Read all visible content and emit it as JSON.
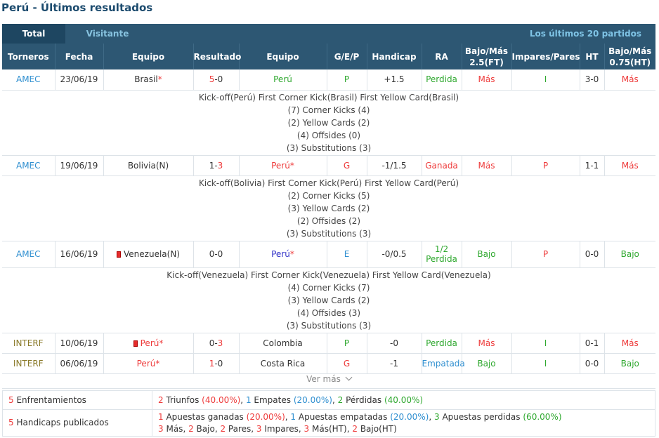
{
  "title": "Perú - Últimos resultados",
  "tabs": {
    "total": "Total",
    "visitante": "Visitante",
    "last20": "Los últimos 20 partidos"
  },
  "headers": [
    "Torneros",
    "Fecha",
    "Equipo",
    "Resultado",
    "Equipo",
    "G/E/P",
    "Handicap",
    "RA",
    "Bajo/Más 2.5(FT)",
    "Impares/Pares",
    "HT",
    "Bajo/Más 0.75(HT)"
  ],
  "header_lines": {
    "bm_ft_1": "Bajo/Más",
    "bm_ft_2": "2.5(FT)",
    "bm_ht_1": "Bajo/Más",
    "bm_ht_2": "0.75(HT)"
  },
  "matches": [
    {
      "tournament": "AMEC",
      "date": "23/06/19",
      "home": "Brasil",
      "home_star": "*",
      "home_flag": false,
      "score_home": "5",
      "score_sep": "-",
      "score_away": "0",
      "away": "Perú",
      "away_star": "",
      "gep": "P",
      "handicap": "+1.5",
      "ra": "Perdida",
      "ra2": "",
      "bm_ft": "Más",
      "ip": "I",
      "ht": "3-0",
      "bm_ht": "Más",
      "details": [
        "Kick-off(Perú)  First Corner Kick(Brasil)  First Yellow Card(Brasil)",
        "(7) Corner Kicks (4)",
        "(2) Yellow Cards (2)",
        "(4) Offsides (0)",
        "(3) Substitutions (3)"
      ]
    },
    {
      "tournament": "AMEC",
      "date": "19/06/19",
      "home": "Bolivia(N)",
      "home_star": "",
      "home_flag": false,
      "score_home": "1",
      "score_sep": "-",
      "score_away": "3",
      "away": "Perú",
      "away_star": "*",
      "gep": "G",
      "handicap": "-1/1.5",
      "ra": "Ganada",
      "ra2": "",
      "bm_ft": "Más",
      "ip": "P",
      "ht": "1-1",
      "bm_ht": "Más",
      "details": [
        "Kick-off(Bolivia)  First Corner Kick(Perú)  First Yellow Card(Perú)",
        "(2) Corner Kicks (5)",
        "(3) Yellow Cards (2)",
        "(2) Offsides (2)",
        "(3) Substitutions (3)"
      ]
    },
    {
      "tournament": "AMEC",
      "date": "16/06/19",
      "home": "Venezuela(N)",
      "home_star": "",
      "home_flag": true,
      "score_home": "0",
      "score_sep": "-",
      "score_away": "0",
      "away": "Perú",
      "away_star": "*",
      "gep": "E",
      "handicap": "-0/0.5",
      "ra": "1/2",
      "ra2": "Perdida",
      "bm_ft": "Bajo",
      "ip": "P",
      "ht": "0-0",
      "bm_ht": "Bajo",
      "details": [
        "Kick-off(Venezuela)  First Corner Kick(Venezuela)  First Yellow Card(Venezuela)",
        "(4) Corner Kicks (7)",
        "(3) Yellow Cards (2)",
        "(4) Offsides (3)",
        "(3) Substitutions (3)"
      ]
    },
    {
      "tournament": "INTERF",
      "date": "10/06/19",
      "home": "Perú",
      "home_star": "*",
      "home_flag": true,
      "score_home": "0",
      "score_sep": "-",
      "score_away": "3",
      "away": "Colombia",
      "away_star": "",
      "gep": "P",
      "handicap": "-0",
      "ra": "Perdida",
      "ra2": "",
      "bm_ft": "Más",
      "ip": "I",
      "ht": "0-1",
      "bm_ht": "Más",
      "details": []
    },
    {
      "tournament": "INTERF",
      "date": "06/06/19",
      "home": "Perú",
      "home_star": "*",
      "home_flag": false,
      "score_home": "1",
      "score_sep": "-",
      "score_away": "0",
      "away": "Costa Rica",
      "away_star": "",
      "gep": "G",
      "handicap": "-1",
      "ra": "Empatada",
      "ra2": "",
      "bm_ft": "Bajo",
      "ip": "I",
      "ht": "0-0",
      "bm_ht": "Bajo",
      "details": []
    }
  ],
  "ver_mas": "Ver más",
  "summary": {
    "enf": {
      "count": "5",
      "label": "Enfrentamientos",
      "wins": "2",
      "wins_label": "Triunfos",
      "wins_pct": "(40.00%)",
      "draws": "1",
      "draws_label": "Empates",
      "draws_pct": "(20.00%)",
      "losses": "2",
      "losses_label": "Pérdidas",
      "losses_pct": "(40.00%)"
    },
    "hcp": {
      "count": "5",
      "label": "Handicaps publicados",
      "won": "1",
      "won_label": "Apuestas ganadas",
      "won_pct": "(20.00%)",
      "push": "1",
      "push_label": "Apuestas empatadas",
      "push_pct": "(20.00%)",
      "lost": "3",
      "lost_label": "Apuestas perdidas",
      "lost_pct": "(60.00%)",
      "mas": "3",
      "mas_label": "Más",
      "bajo": "2",
      "bajo_label": "Bajo",
      "pares": "2",
      "pares_label": "Pares",
      "impares": "3",
      "impares_label": "Impares",
      "mas_ht": "3",
      "mas_ht_label": "Más(HT)",
      "bajo_ht": "2",
      "bajo_ht_label": "Bajo(HT)"
    }
  },
  "colors": {
    "header_bg": "#2d5773",
    "tab_active": "#1e4661",
    "title": "#1c4b6e",
    "win_red": "#ee3b3b",
    "green": "#2fa82f",
    "blue": "#2f8fd0"
  }
}
